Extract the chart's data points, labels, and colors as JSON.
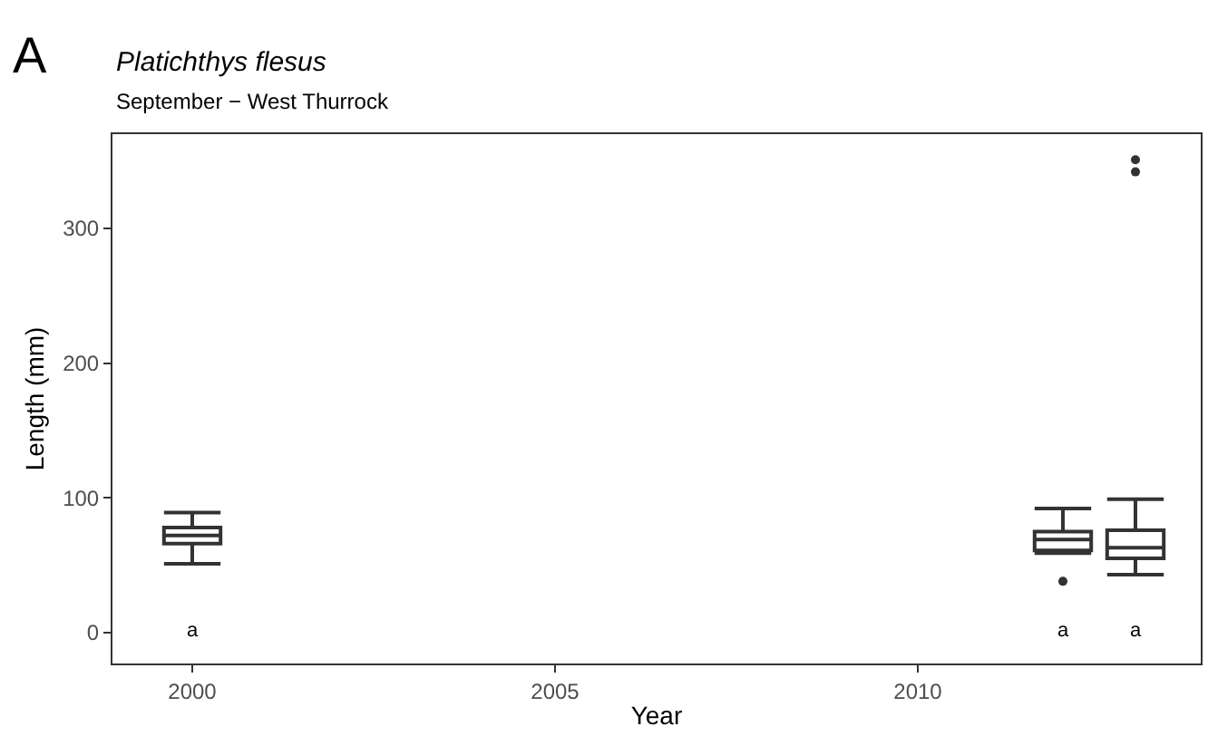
{
  "chart_data": {
    "type": "box",
    "title": "Platichthys flesus",
    "subtitle": "September − West Thurrock",
    "xlabel": "Year",
    "ylabel": "Length (mm)",
    "x": [
      2000,
      2012,
      2013
    ],
    "boxes": [
      {
        "low": 51,
        "q1": 66,
        "median": 72,
        "q3": 78,
        "high": 89
      },
      {
        "low": 59,
        "q1": 61,
        "median": 69,
        "q3": 75,
        "high": 92,
        "outliers": [
          38
        ]
      },
      {
        "low": 43,
        "q1": 55,
        "median": 63,
        "q3": 76,
        "high": 99,
        "outliers": [
          342,
          351
        ]
      }
    ],
    "color": "#333333",
    "xlim": [
      1998.9,
      2013.9
    ],
    "xticks": [
      2000,
      2005,
      2010
    ],
    "ylim": [
      -23,
      370
    ],
    "yticks": [
      0,
      100,
      200,
      300
    ],
    "annotations": [
      "A",
      "a",
      "a",
      "a"
    ]
  }
}
